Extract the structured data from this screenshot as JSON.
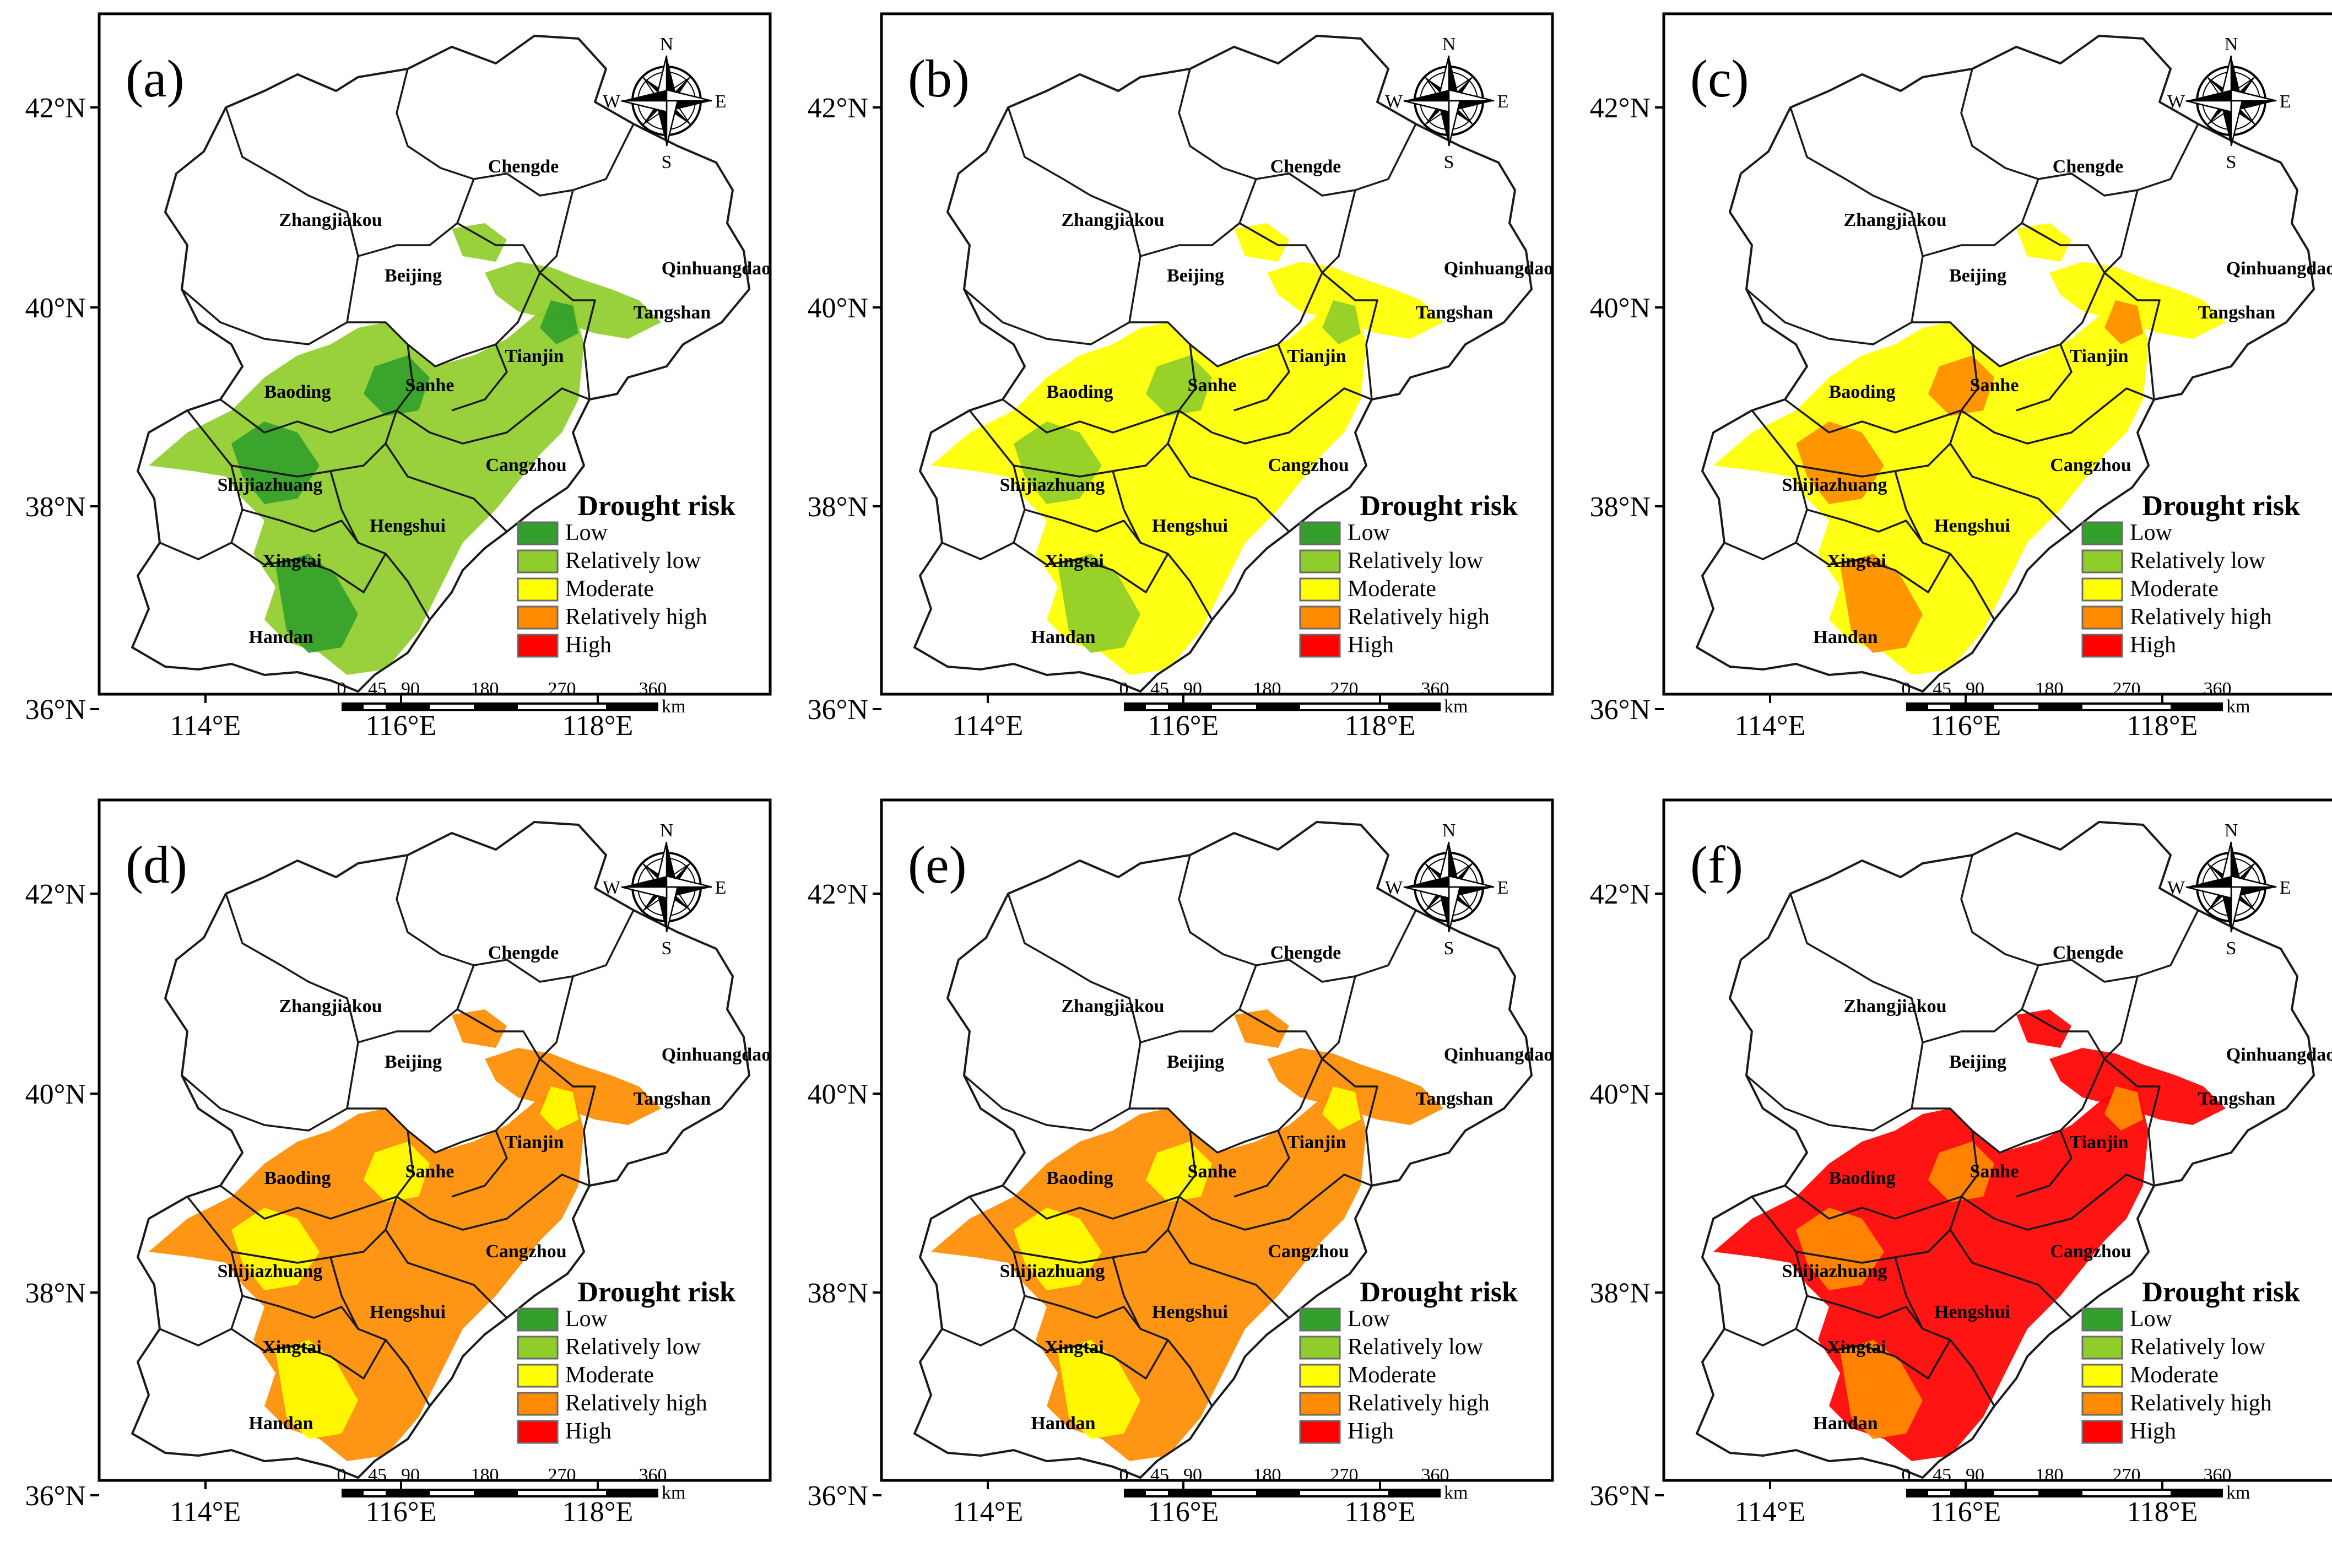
{
  "panels": [
    {
      "label": "(a)",
      "dominant_level": "Relatively low",
      "secondary_level": "Low"
    },
    {
      "label": "(b)",
      "dominant_level": "Moderate",
      "secondary_level": "Relatively low"
    },
    {
      "label": "(c)",
      "dominant_level": "Moderate",
      "secondary_level": "Relatively high"
    },
    {
      "label": "(d)",
      "dominant_level": "Relatively high",
      "secondary_level": "Moderate"
    },
    {
      "label": "(e)",
      "dominant_level": "Relatively high",
      "secondary_level": "Moderate"
    },
    {
      "label": "(f)",
      "dominant_level": "High",
      "secondary_level": "Relatively high"
    }
  ],
  "lat_labels": [
    "42°N",
    "40°N",
    "38°N",
    "36°N"
  ],
  "lon_labels": [
    "114°E",
    "116°E",
    "118°E"
  ],
  "cities": [
    "Chengde",
    "Zhangjiakou",
    "Beijing",
    "Qinhuangdao",
    "Tangshan",
    "Tianjin",
    "Baoding",
    "Sanhe",
    "Cangzhou",
    "Shijiazhuang",
    "Hengshui",
    "Xingtai",
    "Handan"
  ],
  "legend": {
    "title": "Drought risk",
    "items": [
      {
        "label": "Low",
        "color": "#33a02c"
      },
      {
        "label": "Relatively low",
        "color": "#8fcd2a"
      },
      {
        "label": "Moderate",
        "color": "#ffff00"
      },
      {
        "label": "Relatively high",
        "color": "#ff8c00"
      },
      {
        "label": "High",
        "color": "#ff0000"
      }
    ]
  },
  "scale_bar": {
    "ticks": [
      "0",
      "45",
      "90",
      "180",
      "270",
      "360"
    ],
    "unit": "km"
  },
  "compass": {
    "n": "N",
    "s": "S",
    "e": "E",
    "w": "W"
  }
}
